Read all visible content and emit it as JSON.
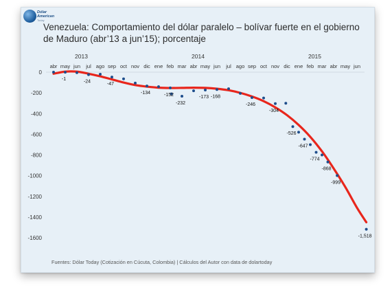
{
  "logo": {
    "line1": "Dólar",
    "line2": "American",
    "line3": "Today"
  },
  "title": "Venezuela: Comportamiento del dólar paralelo – bolívar fuerte en el gobierno de Maduro  (abr’13 a jun’15); porcentaje",
  "footer": "Fuentes: Dólar Today (Cotización en Cúcuta, Colombia) | Cálculos del Autor con data de dolartoday",
  "colors": {
    "background": "#e7f0f7",
    "trend": "#e8261c",
    "points": "#1f4e8c"
  },
  "chart_data": {
    "type": "scatter",
    "years": [
      {
        "label": "2013",
        "index": 2.5
      },
      {
        "label": "2014",
        "index": 12.5
      },
      {
        "label": "2015",
        "index": 22.5
      }
    ],
    "months": [
      "abr",
      "may",
      "jun",
      "jul",
      "ago",
      "sep",
      "oct",
      "nov",
      "dic",
      "ene",
      "feb",
      "mar",
      "abr",
      "may",
      "jun",
      "jul",
      "ago",
      "sep",
      "oct",
      "nov",
      "dic",
      "ene",
      "feb",
      "mar",
      "abr",
      "may",
      "jun"
    ],
    "yticks": [
      0,
      -200,
      -400,
      -600,
      -800,
      -1000,
      -1200,
      -1400,
      -1600
    ],
    "ylim": [
      -1650,
      30
    ],
    "grid": false,
    "series": [
      {
        "values": [
          0,
          -1,
          -5,
          -24,
          -20,
          -47,
          -65,
          -105,
          -134,
          -140,
          -152,
          -210,
          -232,
          -180,
          -173,
          -168,
          -160,
          -205,
          -246,
          -250,
          -304,
          -300,
          -526,
          -580,
          -647,
          -700,
          -774,
          -800,
          -868,
          -999,
          -1518
        ],
        "x": [
          0,
          1,
          2,
          3,
          4,
          5,
          6,
          7,
          8,
          9,
          10,
          10.1,
          11,
          12,
          13,
          14,
          15,
          16,
          17,
          18,
          19,
          19.9,
          20.5,
          21,
          21.5,
          22,
          22.5,
          23,
          23.5,
          24.3,
          26.8
        ]
      }
    ],
    "data_labels": [
      {
        "x": 1,
        "y": -1,
        "text": "-1"
      },
      {
        "x": 3,
        "y": -24,
        "text": "-24"
      },
      {
        "x": 5,
        "y": -47,
        "text": "-47"
      },
      {
        "x": 8,
        "y": -134,
        "text": "-134"
      },
      {
        "x": 10,
        "y": -152,
        "text": "-152"
      },
      {
        "x": 11,
        "y": -232,
        "text": "-232"
      },
      {
        "x": 13,
        "y": -173,
        "text": "-173"
      },
      {
        "x": 14,
        "y": -168,
        "text": "-168"
      },
      {
        "x": 17,
        "y": -246,
        "text": "-246"
      },
      {
        "x": 19,
        "y": -304,
        "text": "-304"
      },
      {
        "x": 20.5,
        "y": -526,
        "text": "-526"
      },
      {
        "x": 21.5,
        "y": -647,
        "text": "-647"
      },
      {
        "x": 22.5,
        "y": -774,
        "text": "-774"
      },
      {
        "x": 23.5,
        "y": -868,
        "text": "-868"
      },
      {
        "x": 24.3,
        "y": -999,
        "text": "-999"
      },
      {
        "x": 26.8,
        "y": -1518,
        "text": "-1,518"
      }
    ],
    "trendline": {
      "x": [
        0,
        1,
        2,
        3,
        4,
        5,
        6,
        7,
        8,
        9,
        10,
        11,
        12,
        13,
        14,
        15,
        16,
        17,
        18,
        19,
        20,
        21,
        22,
        23,
        24,
        25,
        26,
        26.8
      ],
      "values": [
        -15,
        5,
        5,
        -15,
        -40,
        -70,
        -100,
        -125,
        -140,
        -150,
        -153,
        -152,
        -150,
        -152,
        -160,
        -175,
        -200,
        -235,
        -280,
        -340,
        -415,
        -510,
        -625,
        -765,
        -930,
        -1110,
        -1310,
        -1450
      ]
    }
  }
}
